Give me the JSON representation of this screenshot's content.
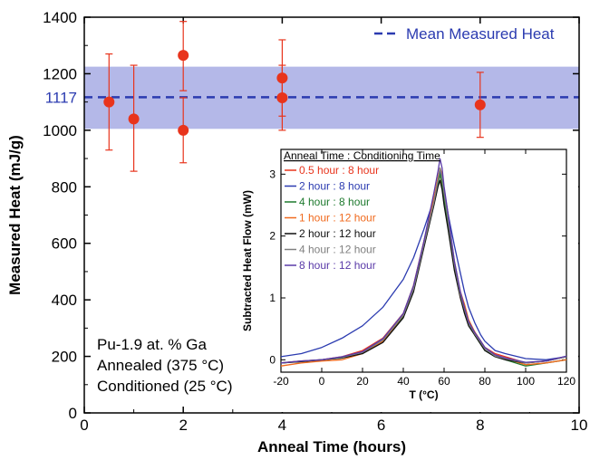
{
  "colors": {
    "points": "#e8341c",
    "error_bars": "#e8341c",
    "mean_line": "#2b3bb0",
    "band": "#b4b8e8",
    "mean_label": "#2b3bb0"
  },
  "chart_data": [
    {
      "type": "scatter",
      "xlabel": "Anneal Time (hours)",
      "ylabel": "Measured Heat (mJ/g)",
      "xlim": [
        0,
        10
      ],
      "ylim": [
        0,
        1400
      ],
      "x_ticks": [
        "0",
        "2",
        "4",
        "6",
        "8",
        "10"
      ],
      "y_ticks": [
        "0",
        "200",
        "400",
        "600",
        "800",
        "1000",
        "1200",
        "1400"
      ],
      "grid": false,
      "points": [
        {
          "x": 0.5,
          "y": 1100,
          "yerr_low": 930,
          "yerr_high": 1270
        },
        {
          "x": 1.0,
          "y": 1040,
          "yerr_low": 855,
          "yerr_high": 1230
        },
        {
          "x": 2.0,
          "y": 1265,
          "yerr_low": 1140,
          "yerr_high": 1385
        },
        {
          "x": 2.0,
          "y": 1000,
          "yerr_low": 885,
          "yerr_high": 1115
        },
        {
          "x": 4.0,
          "y": 1185,
          "yerr_low": 1050,
          "yerr_high": 1320
        },
        {
          "x": 4.0,
          "y": 1115,
          "yerr_low": 1000,
          "yerr_high": 1230
        },
        {
          "x": 8.0,
          "y": 1090,
          "yerr_low": 975,
          "yerr_high": 1205
        }
      ],
      "mean": {
        "value": 1117,
        "label": "1117",
        "band": [
          1005,
          1225
        ],
        "legend": "Mean Measured Heat"
      },
      "annotations": [
        "Pu-1.9 at. % Ga",
        "Annealed (375 °C)",
        "Conditioned (25 °C)"
      ]
    },
    {
      "type": "line",
      "legend_title": "Anneal Time : Conditioning Time",
      "xlabel": "T (°C)",
      "ylabel": "Subtracted Heat Flow (mW)",
      "xlim": [
        -20,
        120
      ],
      "ylim": [
        -0.2,
        3.4
      ],
      "x_ticks": [
        "-20",
        "0",
        "20",
        "40",
        "60",
        "80",
        "100",
        "120"
      ],
      "y_ticks": [
        "0",
        "1",
        "2",
        "3"
      ],
      "series": [
        {
          "name": "0.5 hour : 8 hour",
          "color": "#e8341c"
        },
        {
          "name": "2 hour : 8 hour",
          "color": "#2b3bb0"
        },
        {
          "name": "4 hour : 8 hour",
          "color": "#1e7a2e"
        },
        {
          "name": "1 hour : 12 hour",
          "color": "#f06a1e"
        },
        {
          "name": "2 hour : 12 hour",
          "color": "#111111"
        },
        {
          "name": "4 hour : 12 hour",
          "color": "#808080"
        },
        {
          "name": "8 hour : 12 hour",
          "color": "#5a3aa8"
        }
      ],
      "curve_x": [
        -20,
        -10,
        0,
        10,
        20,
        30,
        40,
        45,
        50,
        55,
        57,
        58,
        59,
        60,
        62,
        65,
        68,
        70,
        72,
        75,
        78,
        80,
        85,
        90,
        100,
        110,
        120
      ],
      "curve_y": [
        [
          -0.05,
          -0.02,
          0.0,
          0.05,
          0.15,
          0.35,
          0.75,
          1.2,
          1.9,
          2.6,
          2.9,
          3.0,
          2.8,
          2.6,
          2.2,
          1.5,
          1.0,
          0.8,
          0.6,
          0.45,
          0.3,
          0.2,
          0.1,
          0.05,
          -0.05,
          -0.02,
          0.05
        ],
        [
          0.05,
          0.1,
          0.2,
          0.35,
          0.55,
          0.85,
          1.3,
          1.65,
          2.1,
          2.6,
          2.85,
          3.05,
          2.95,
          2.75,
          2.35,
          1.85,
          1.4,
          1.1,
          0.85,
          0.6,
          0.4,
          0.3,
          0.15,
          0.1,
          0.02,
          0.0,
          0.05
        ],
        [
          -0.05,
          -0.03,
          0.0,
          0.03,
          0.1,
          0.3,
          0.7,
          1.15,
          1.85,
          2.55,
          2.85,
          3.0,
          2.85,
          2.6,
          2.2,
          1.5,
          1.05,
          0.8,
          0.6,
          0.4,
          0.25,
          0.15,
          0.05,
          0.0,
          -0.1,
          -0.05,
          0.0
        ],
        [
          -0.1,
          -0.05,
          -0.02,
          0.0,
          0.1,
          0.3,
          0.72,
          1.2,
          1.9,
          2.6,
          2.95,
          3.1,
          3.0,
          2.7,
          2.3,
          1.6,
          1.1,
          0.9,
          0.65,
          0.45,
          0.3,
          0.2,
          0.08,
          0.02,
          -0.08,
          -0.05,
          0.0
        ],
        [
          -0.05,
          -0.03,
          0.0,
          0.03,
          0.1,
          0.28,
          0.68,
          1.1,
          1.8,
          2.5,
          2.8,
          2.9,
          2.75,
          2.5,
          2.1,
          1.45,
          1.0,
          0.75,
          0.55,
          0.4,
          0.25,
          0.15,
          0.05,
          0.0,
          -0.05,
          -0.02,
          0.05
        ],
        [
          -0.05,
          -0.02,
          0.0,
          0.04,
          0.12,
          0.32,
          0.72,
          1.15,
          1.85,
          2.55,
          2.9,
          3.1,
          2.95,
          2.7,
          2.25,
          1.55,
          1.05,
          0.82,
          0.6,
          0.42,
          0.28,
          0.18,
          0.06,
          0.02,
          -0.05,
          -0.02,
          0.05
        ],
        [
          -0.05,
          -0.02,
          0.0,
          0.05,
          0.13,
          0.34,
          0.75,
          1.2,
          1.9,
          2.7,
          3.05,
          3.25,
          3.1,
          2.8,
          2.35,
          1.6,
          1.1,
          0.85,
          0.62,
          0.44,
          0.3,
          0.2,
          0.08,
          0.03,
          -0.04,
          -0.02,
          0.06
        ]
      ]
    }
  ]
}
